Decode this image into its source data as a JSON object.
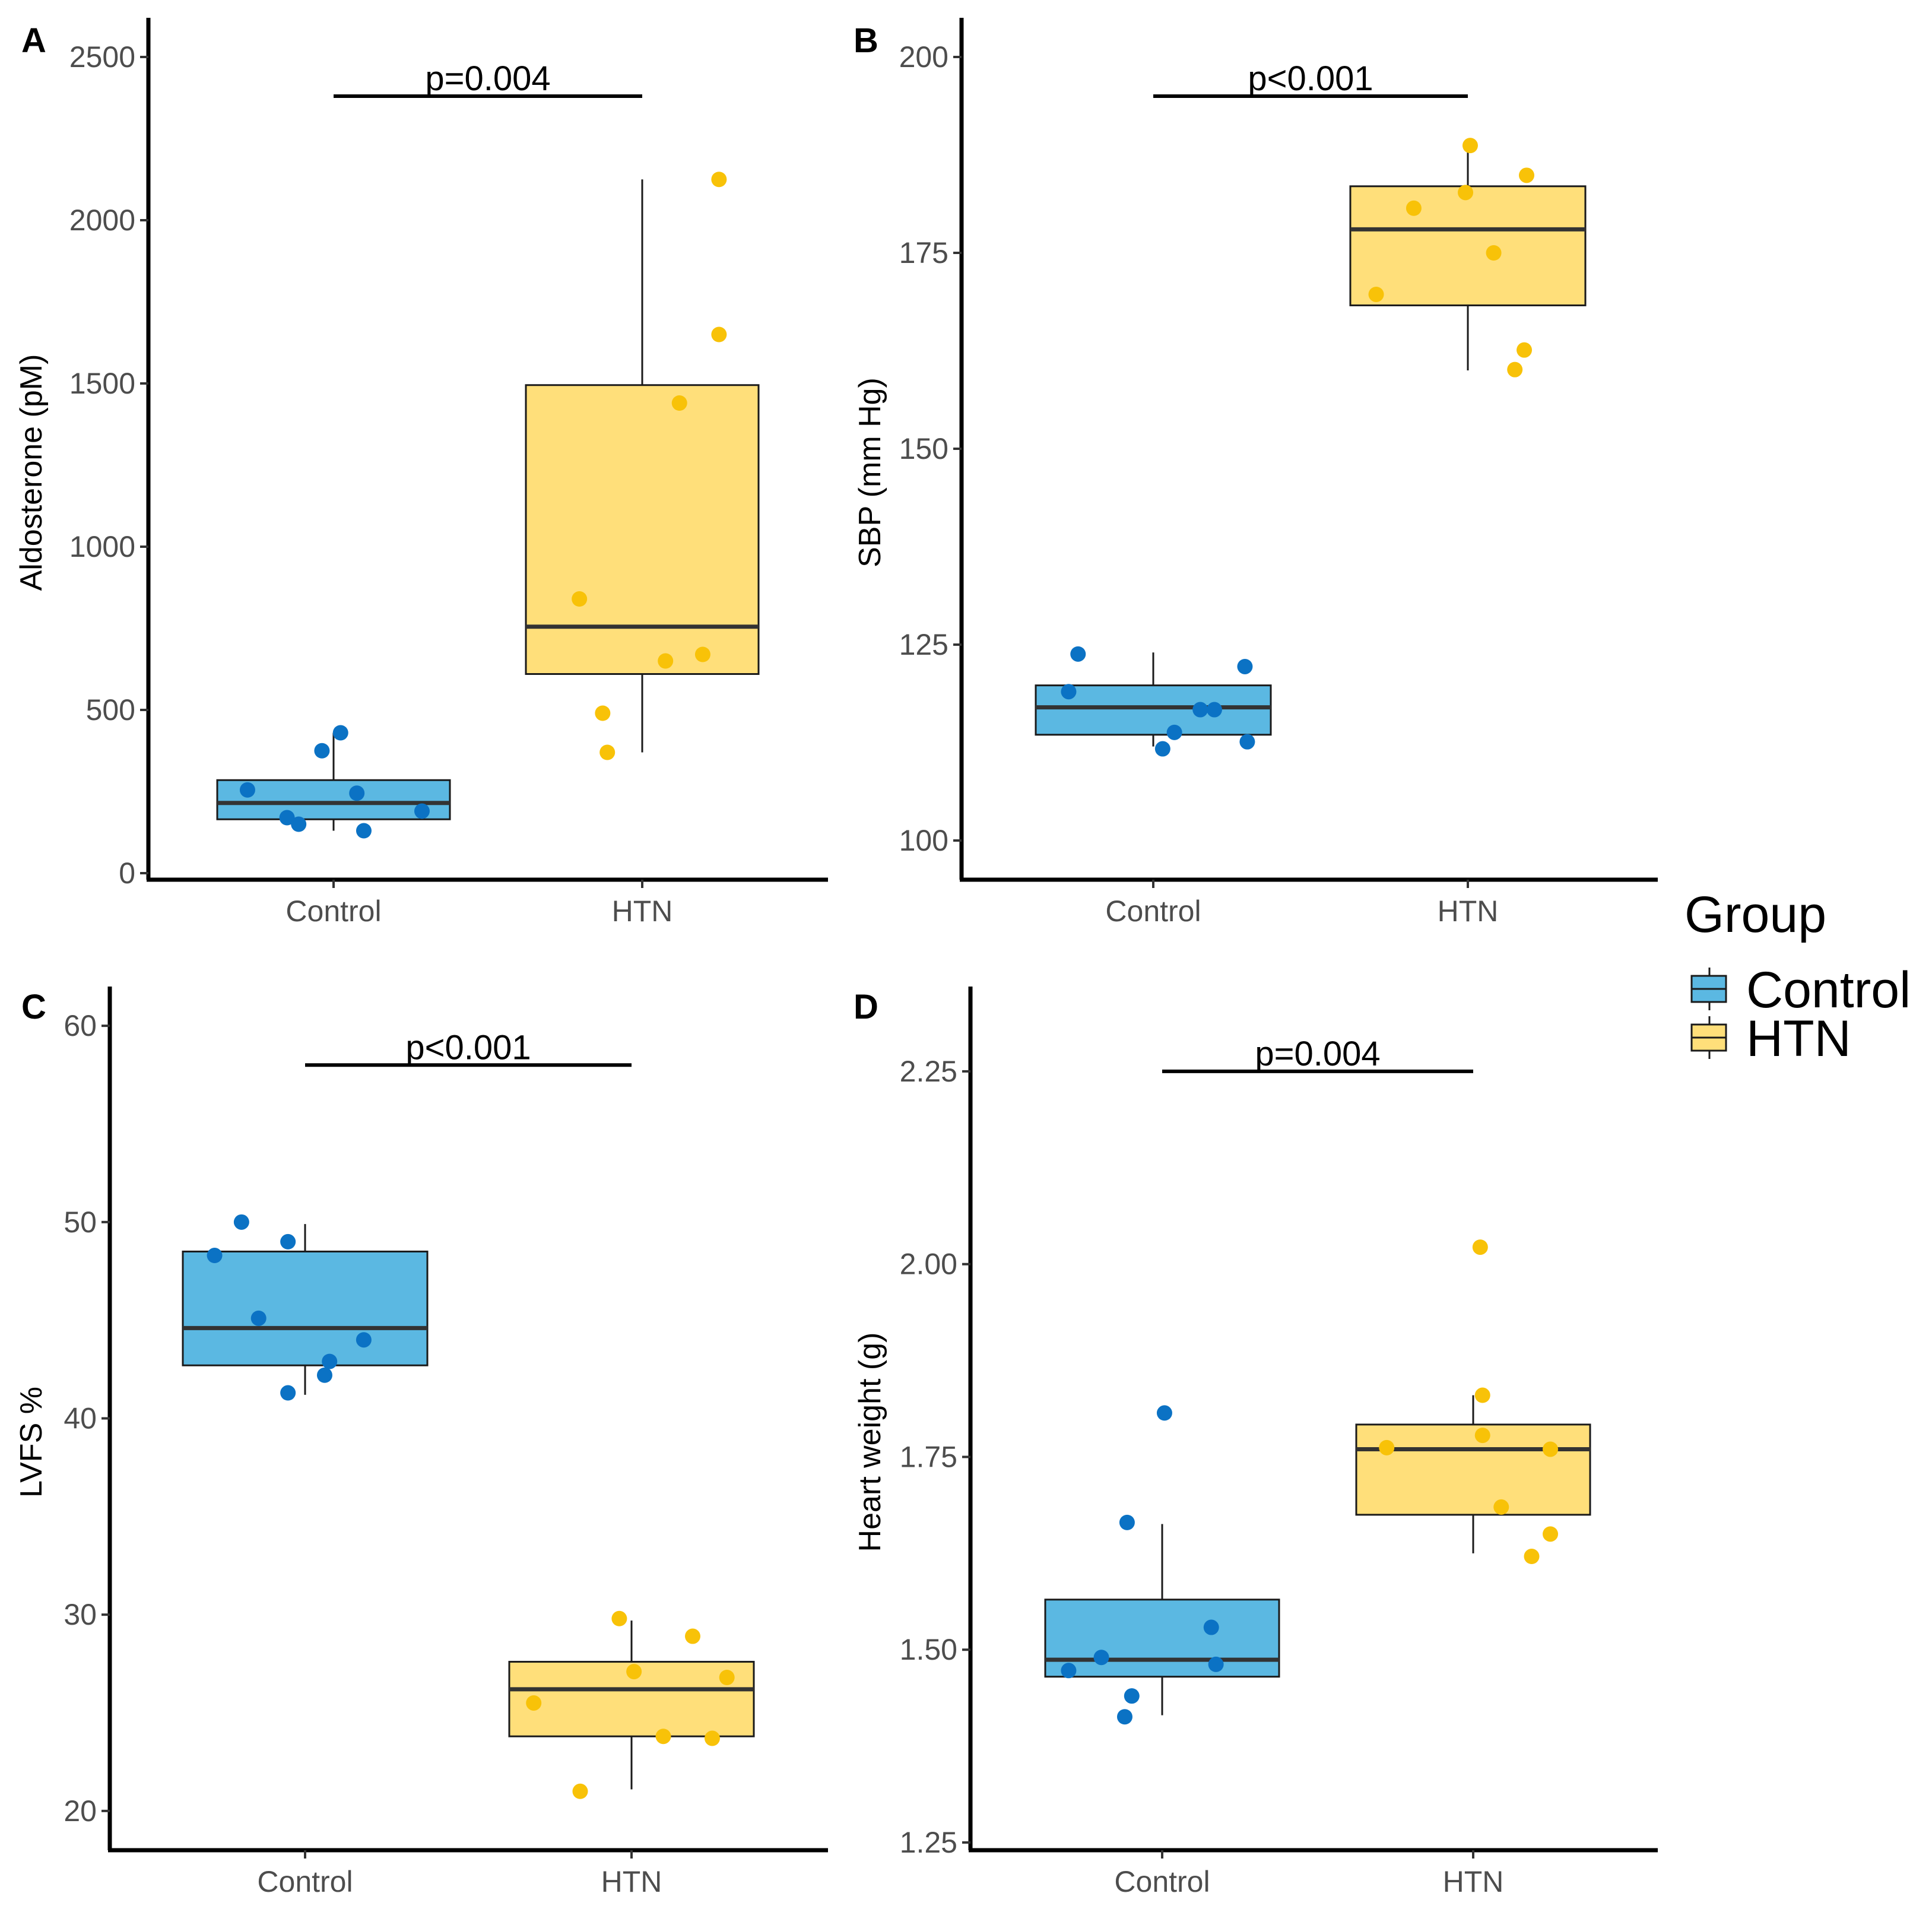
{
  "legend": {
    "title": "Group",
    "items": [
      {
        "label": "Control",
        "color": "#5bb8e2"
      },
      {
        "label": "HTN",
        "color": "#ffdf7a"
      }
    ]
  },
  "colors": {
    "control_point": "#0b72c4",
    "htn_point": "#f8c208",
    "box_stroke": "#1a1a1a",
    "median": "#333333"
  },
  "chart_data": [
    {
      "type": "box",
      "panel": "A",
      "title": "",
      "xlabel": "",
      "ylabel": "Aldosterone (pM)",
      "categories": [
        "Control",
        "HTN"
      ],
      "ylim": [
        -20,
        2620
      ],
      "yticks": [
        0,
        500,
        1000,
        1500,
        2000,
        2500
      ],
      "ytick_labels": [
        "0",
        "500",
        "1000",
        "1500",
        "2000",
        "2500"
      ],
      "pvalue": "p=0.004",
      "bracket_y": 2380,
      "boxes": [
        {
          "name": "Control",
          "q1": 165,
          "median": 215,
          "q3": 285,
          "whisker_low": 130,
          "whisker_high": 430
        },
        {
          "name": "HTN",
          "q1": 610,
          "median": 755,
          "q3": 1495,
          "whisker_low": 370,
          "whisker_high": 2125
        }
      ],
      "points": [
        {
          "group": "Control",
          "jitter": -0.37,
          "value": 255
        },
        {
          "group": "Control",
          "jitter": -0.2,
          "value": 170
        },
        {
          "group": "Control",
          "jitter": -0.15,
          "value": 150
        },
        {
          "group": "Control",
          "jitter": -0.05,
          "value": 375
        },
        {
          "group": "Control",
          "jitter": 0.03,
          "value": 430
        },
        {
          "group": "Control",
          "jitter": 0.1,
          "value": 245
        },
        {
          "group": "Control",
          "jitter": 0.13,
          "value": 130
        },
        {
          "group": "Control",
          "jitter": 0.38,
          "value": 190
        },
        {
          "group": "HTN",
          "jitter": -0.27,
          "value": 840
        },
        {
          "group": "HTN",
          "jitter": -0.17,
          "value": 490
        },
        {
          "group": "HTN",
          "jitter": -0.15,
          "value": 370
        },
        {
          "group": "HTN",
          "jitter": 0.1,
          "value": 650
        },
        {
          "group": "HTN",
          "jitter": 0.16,
          "value": 1440
        },
        {
          "group": "HTN",
          "jitter": 0.26,
          "value": 670
        },
        {
          "group": "HTN",
          "jitter": 0.33,
          "value": 1650
        },
        {
          "group": "HTN",
          "jitter": 0.33,
          "value": 2125
        }
      ]
    },
    {
      "type": "box",
      "panel": "B",
      "title": "",
      "xlabel": "",
      "ylabel": "SBP (mm Hg)",
      "categories": [
        "Control",
        "HTN"
      ],
      "ylim": [
        95,
        205
      ],
      "yticks": [
        100,
        125,
        150,
        175,
        200
      ],
      "ytick_labels": [
        "100",
        "125",
        "150",
        "175",
        "200"
      ],
      "pvalue": "p<0.001",
      "bracket_y": 195,
      "boxes": [
        {
          "name": "Control",
          "q1": 113.5,
          "median": 117,
          "q3": 119.8,
          "whisker_low": 112,
          "whisker_high": 124
        },
        {
          "name": "HTN",
          "q1": 168.3,
          "median": 178,
          "q3": 183.5,
          "whisker_low": 160,
          "whisker_high": 188.5
        }
      ],
      "points": [
        {
          "group": "Control",
          "jitter": -0.36,
          "value": 119
        },
        {
          "group": "Control",
          "jitter": -0.32,
          "value": 123.8
        },
        {
          "group": "Control",
          "jitter": 0.04,
          "value": 111.7
        },
        {
          "group": "Control",
          "jitter": 0.09,
          "value": 113.8
        },
        {
          "group": "Control",
          "jitter": 0.2,
          "value": 116.7
        },
        {
          "group": "Control",
          "jitter": 0.26,
          "value": 116.7
        },
        {
          "group": "Control",
          "jitter": 0.39,
          "value": 122.2
        },
        {
          "group": "Control",
          "jitter": 0.4,
          "value": 112.6
        },
        {
          "group": "HTN",
          "jitter": -0.39,
          "value": 169.7
        },
        {
          "group": "HTN",
          "jitter": -0.23,
          "value": 180.7
        },
        {
          "group": "HTN",
          "jitter": -0.01,
          "value": 182.7
        },
        {
          "group": "HTN",
          "jitter": 0.01,
          "value": 188.7
        },
        {
          "group": "HTN",
          "jitter": 0.11,
          "value": 175
        },
        {
          "group": "HTN",
          "jitter": 0.2,
          "value": 160.1
        },
        {
          "group": "HTN",
          "jitter": 0.24,
          "value": 162.6
        },
        {
          "group": "HTN",
          "jitter": 0.25,
          "value": 184.9
        }
      ]
    },
    {
      "type": "box",
      "panel": "C",
      "title": "",
      "xlabel": "",
      "ylabel": "LVFS %",
      "categories": [
        "Control",
        "HTN"
      ],
      "ylim": [
        18,
        62
      ],
      "yticks": [
        20,
        30,
        40,
        50,
        60
      ],
      "ytick_labels": [
        "20",
        "30",
        "40",
        "50",
        "60"
      ],
      "pvalue": "p<0.001",
      "bracket_y": 58,
      "boxes": [
        {
          "name": "Control",
          "q1": 42.7,
          "median": 44.6,
          "q3": 48.5,
          "whisker_low": 41.2,
          "whisker_high": 49.9
        },
        {
          "name": "HTN",
          "q1": 23.8,
          "median": 26.2,
          "q3": 27.6,
          "whisker_low": 21.1,
          "whisker_high": 29.7
        }
      ],
      "points": [
        {
          "group": "Control",
          "jitter": -0.37,
          "value": 48.3
        },
        {
          "group": "Control",
          "jitter": -0.26,
          "value": 50
        },
        {
          "group": "Control",
          "jitter": -0.19,
          "value": 45.1
        },
        {
          "group": "Control",
          "jitter": -0.07,
          "value": 49
        },
        {
          "group": "Control",
          "jitter": -0.07,
          "value": 41.3
        },
        {
          "group": "Control",
          "jitter": 0.08,
          "value": 42.2
        },
        {
          "group": "Control",
          "jitter": 0.1,
          "value": 42.9
        },
        {
          "group": "Control",
          "jitter": 0.24,
          "value": 44
        },
        {
          "group": "HTN",
          "jitter": -0.4,
          "value": 25.5
        },
        {
          "group": "HTN",
          "jitter": -0.21,
          "value": 21
        },
        {
          "group": "HTN",
          "jitter": -0.05,
          "value": 29.8
        },
        {
          "group": "HTN",
          "jitter": 0.01,
          "value": 27.1
        },
        {
          "group": "HTN",
          "jitter": 0.13,
          "value": 23.8
        },
        {
          "group": "HTN",
          "jitter": 0.25,
          "value": 28.9
        },
        {
          "group": "HTN",
          "jitter": 0.33,
          "value": 23.7
        },
        {
          "group": "HTN",
          "jitter": 0.39,
          "value": 26.8
        }
      ]
    },
    {
      "type": "box",
      "panel": "D",
      "title": "",
      "xlabel": "",
      "ylabel": "Heart weight (g)",
      "categories": [
        "Control",
        "HTN"
      ],
      "ylim": [
        1.24,
        2.36
      ],
      "yticks": [
        1.25,
        1.5,
        1.75,
        2.0,
        2.25
      ],
      "ytick_labels": [
        "1.25",
        "1.50",
        "1.75",
        "2.00",
        "2.25"
      ],
      "pvalue": "p=0.004",
      "bracket_y": 2.25,
      "boxes": [
        {
          "name": "Control",
          "q1": 1.465,
          "median": 1.487,
          "q3": 1.565,
          "whisker_low": 1.415,
          "whisker_high": 1.663
        },
        {
          "name": "HTN",
          "q1": 1.675,
          "median": 1.76,
          "q3": 1.792,
          "whisker_low": 1.625,
          "whisker_high": 1.83
        }
      ],
      "points": [
        {
          "group": "Control",
          "jitter": -0.4,
          "value": 1.473
        },
        {
          "group": "Control",
          "jitter": -0.26,
          "value": 1.49
        },
        {
          "group": "Control",
          "jitter": -0.15,
          "value": 1.665
        },
        {
          "group": "Control",
          "jitter": -0.16,
          "value": 1.413
        },
        {
          "group": "Control",
          "jitter": -0.13,
          "value": 1.44
        },
        {
          "group": "Control",
          "jitter": 0.01,
          "value": 1.807
        },
        {
          "group": "Control",
          "jitter": 0.21,
          "value": 1.529
        },
        {
          "group": "Control",
          "jitter": 0.23,
          "value": 1.481
        },
        {
          "group": "HTN",
          "jitter": -0.37,
          "value": 1.762
        },
        {
          "group": "HTN",
          "jitter": 0.03,
          "value": 2.022
        },
        {
          "group": "HTN",
          "jitter": 0.04,
          "value": 1.778
        },
        {
          "group": "HTN",
          "jitter": 0.04,
          "value": 1.83
        },
        {
          "group": "HTN",
          "jitter": 0.12,
          "value": 1.685
        },
        {
          "group": "HTN",
          "jitter": 0.25,
          "value": 1.621
        },
        {
          "group": "HTN",
          "jitter": 0.33,
          "value": 1.76
        },
        {
          "group": "HTN",
          "jitter": 0.33,
          "value": 1.65
        }
      ]
    }
  ]
}
